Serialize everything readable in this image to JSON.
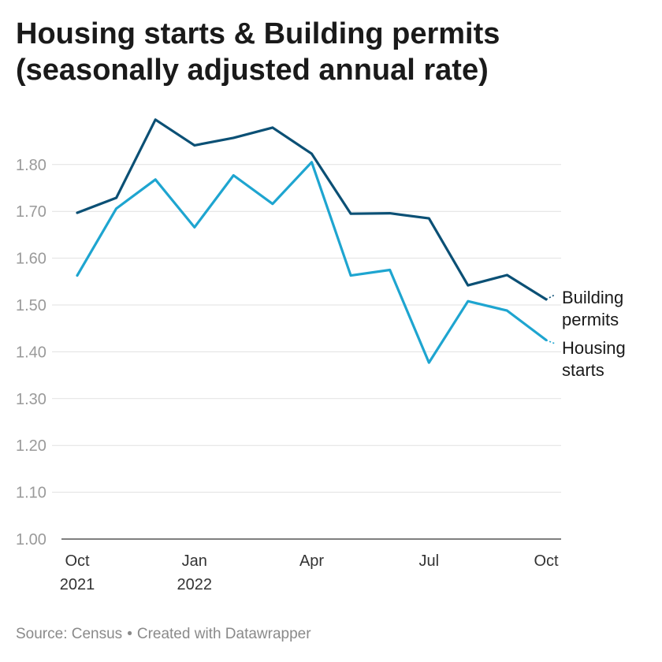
{
  "title": "Housing starts & Building permits (seasonally adjusted annual rate)",
  "footer": {
    "source": "Source: Census",
    "separator": "•",
    "credit": "Created with Datawrapper"
  },
  "chart_data": {
    "type": "line",
    "title": "Housing starts & Building permits (seasonally adjusted annual rate)",
    "xlabel": "",
    "ylabel": "",
    "x": [
      "2021-10",
      "2021-11",
      "2021-12",
      "2022-01",
      "2022-02",
      "2022-03",
      "2022-04",
      "2022-05",
      "2022-06",
      "2022-07",
      "2022-08",
      "2022-09",
      "2022-10"
    ],
    "ylim": [
      1.0,
      1.9
    ],
    "yticks": [
      "1.00",
      "1.10",
      "1.20",
      "1.30",
      "1.40",
      "1.50",
      "1.60",
      "1.70",
      "1.80"
    ],
    "xticks": [
      {
        "x": "2021-10",
        "line1": "Oct",
        "line2": "2021"
      },
      {
        "x": "2022-01",
        "line1": "Jan",
        "line2": "2022"
      },
      {
        "x": "2022-04",
        "line1": "Apr",
        "line2": ""
      },
      {
        "x": "2022-07",
        "line1": "Jul",
        "line2": ""
      },
      {
        "x": "2022-10",
        "line1": "Oct",
        "line2": ""
      }
    ],
    "grid": true,
    "legend": "direct labels at line ends",
    "series": [
      {
        "name": "Building permits",
        "label_lines": [
          "Building",
          "permits"
        ],
        "color": "#0b5075",
        "values": [
          1.697,
          1.729,
          1.896,
          1.841,
          1.857,
          1.879,
          1.823,
          1.695,
          1.696,
          1.685,
          1.542,
          1.564,
          1.512
        ]
      },
      {
        "name": "Housing starts",
        "label_lines": [
          "Housing",
          "starts"
        ],
        "color": "#1ea5d0",
        "values": [
          1.563,
          1.706,
          1.768,
          1.666,
          1.777,
          1.716,
          1.805,
          1.563,
          1.575,
          1.377,
          1.508,
          1.488,
          1.425
        ]
      }
    ]
  }
}
